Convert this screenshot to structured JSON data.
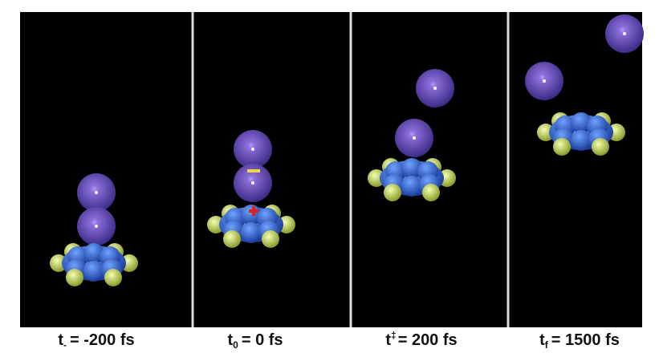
{
  "panels": [
    {
      "label": {
        "symbol": "t",
        "sub": "-",
        "text": "= -200 fs"
      }
    },
    {
      "label": {
        "symbol": "t",
        "sub": "0",
        "text": "= 0 fs"
      }
    },
    {
      "label": {
        "symbol": "t",
        "sup": "‡",
        "text": "= 200 fs"
      }
    },
    {
      "label": {
        "symbol": "t",
        "sub": "f",
        "text": "= 1500 fs"
      }
    }
  ]
}
